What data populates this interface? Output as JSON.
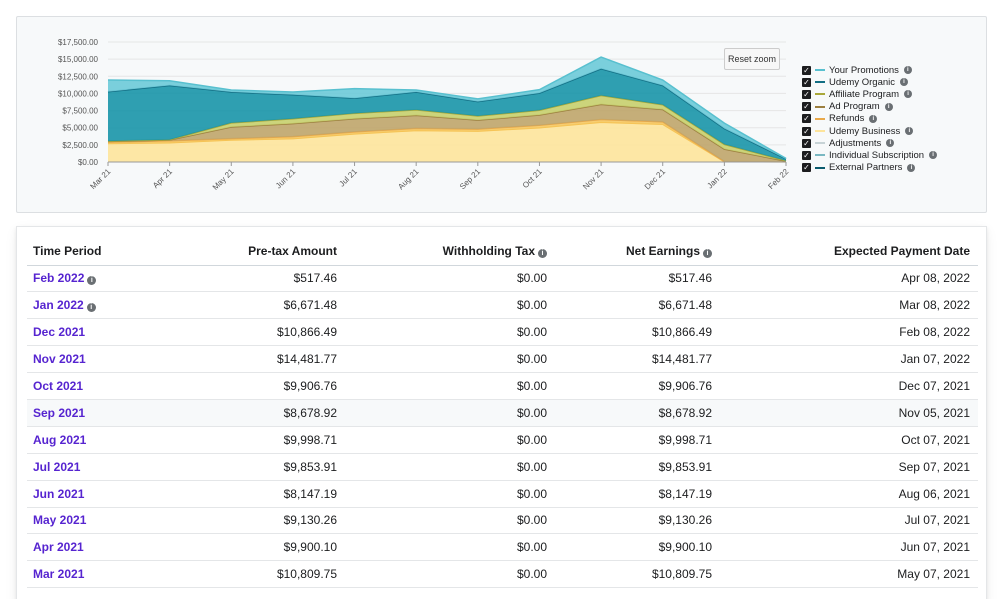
{
  "chart_data": {
    "type": "area",
    "stacked": true,
    "x": [
      "Mar 21",
      "Apr 21",
      "May 21",
      "Jun 21",
      "Jul 21",
      "Aug 21",
      "Sep 21",
      "Oct 21",
      "Nov 21",
      "Dec 21",
      "Jan 22",
      "Feb 22"
    ],
    "ylim": [
      0,
      17500
    ],
    "yticks": [
      "$0.00",
      "$2,500.00",
      "$5,000.00",
      "$7,500.00",
      "$10,000.00",
      "$12,500.00",
      "$15,000.00",
      "$17,500.00"
    ],
    "legend_position": "right",
    "series": [
      {
        "name": "Udemy Business",
        "color": "#fde49b",
        "line": "#f5c252",
        "values": [
          2700,
          2800,
          3200,
          3400,
          4100,
          4600,
          4500,
          5000,
          5800,
          5500,
          50,
          20
        ]
      },
      {
        "name": "Refunds",
        "color": "#f6c964",
        "line": "#e9a94a",
        "values": [
          200,
          300,
          200,
          300,
          300,
          300,
          300,
          350,
          400,
          350,
          20,
          10
        ]
      },
      {
        "name": "Ad Program",
        "color": "#bfa56a",
        "line": "#9c7f3f",
        "values": [
          100,
          100,
          1700,
          1900,
          1900,
          1900,
          1300,
          1500,
          2200,
          1800,
          1800,
          100
        ]
      },
      {
        "name": "Affiliate Program",
        "color": "#c7cf6d",
        "line": "#a9a83a",
        "values": [
          50,
          50,
          600,
          700,
          800,
          800,
          600,
          700,
          1300,
          700,
          700,
          50
        ]
      },
      {
        "name": "Udemy Organic",
        "color": "#1895a8",
        "line": "#126e84",
        "values": [
          7200,
          7900,
          4500,
          3500,
          2200,
          2600,
          2100,
          2500,
          3900,
          2800,
          2300,
          260
        ]
      },
      {
        "name": "Your Promotions",
        "color": "#6ccad8",
        "line": "#58c0cf",
        "values": [
          1700,
          700,
          300,
          400,
          1400,
          300,
          400,
          500,
          1700,
          800,
          800,
          80
        ]
      }
    ]
  },
  "chart": {
    "reset_zoom": "Reset zoom",
    "legend": [
      {
        "label": "Your Promotions",
        "color": "#58c0cf"
      },
      {
        "label": "Udemy Organic",
        "color": "#126e84"
      },
      {
        "label": "Affiliate Program",
        "color": "#a9a83a"
      },
      {
        "label": "Ad Program",
        "color": "#9c7f3f"
      },
      {
        "label": "Refunds",
        "color": "#e9a94a"
      },
      {
        "label": "Udemy Business",
        "color": "#fde49b"
      },
      {
        "label": "Adjustments",
        "color": "#c7d3d6"
      },
      {
        "label": "Individual Subscription",
        "color": "#7ab8c2"
      },
      {
        "label": "External Partners",
        "color": "#0b5b6e"
      }
    ]
  },
  "table": {
    "headers": {
      "period": "Time Period",
      "pretax": "Pre-tax Amount",
      "withholding": "Withholding Tax",
      "net": "Net Earnings",
      "expected": "Expected Payment Date"
    },
    "rows": [
      {
        "period": "Feb 2022",
        "pretax": "$517.46",
        "withholding": "$0.00",
        "net": "$517.46",
        "expected": "Apr 08, 2022"
      },
      {
        "period": "Jan 2022",
        "pretax": "$6,671.48",
        "withholding": "$0.00",
        "net": "$6,671.48",
        "expected": "Mar 08, 2022"
      },
      {
        "period": "Dec 2021",
        "pretax": "$10,866.49",
        "withholding": "$0.00",
        "net": "$10,866.49",
        "expected": "Feb 08, 2022"
      },
      {
        "period": "Nov 2021",
        "pretax": "$14,481.77",
        "withholding": "$0.00",
        "net": "$14,481.77",
        "expected": "Jan 07, 2022"
      },
      {
        "period": "Oct 2021",
        "pretax": "$9,906.76",
        "withholding": "$0.00",
        "net": "$9,906.76",
        "expected": "Dec 07, 2021"
      },
      {
        "period": "Sep 2021",
        "pretax": "$8,678.92",
        "withholding": "$0.00",
        "net": "$8,678.92",
        "expected": "Nov 05, 2021"
      },
      {
        "period": "Aug 2021",
        "pretax": "$9,998.71",
        "withholding": "$0.00",
        "net": "$9,998.71",
        "expected": "Oct 07, 2021"
      },
      {
        "period": "Jul 2021",
        "pretax": "$9,853.91",
        "withholding": "$0.00",
        "net": "$9,853.91",
        "expected": "Sep 07, 2021"
      },
      {
        "period": "Jun 2021",
        "pretax": "$8,147.19",
        "withholding": "$0.00",
        "net": "$8,147.19",
        "expected": "Aug 06, 2021"
      },
      {
        "period": "May 2021",
        "pretax": "$9,130.26",
        "withholding": "$0.00",
        "net": "$9,130.26",
        "expected": "Jul 07, 2021"
      },
      {
        "period": "Apr 2021",
        "pretax": "$9,900.10",
        "withholding": "$0.00",
        "net": "$9,900.10",
        "expected": "Jun 07, 2021"
      },
      {
        "period": "Mar 2021",
        "pretax": "$10,809.75",
        "withholding": "$0.00",
        "net": "$10,809.75",
        "expected": "May 07, 2021"
      }
    ]
  }
}
